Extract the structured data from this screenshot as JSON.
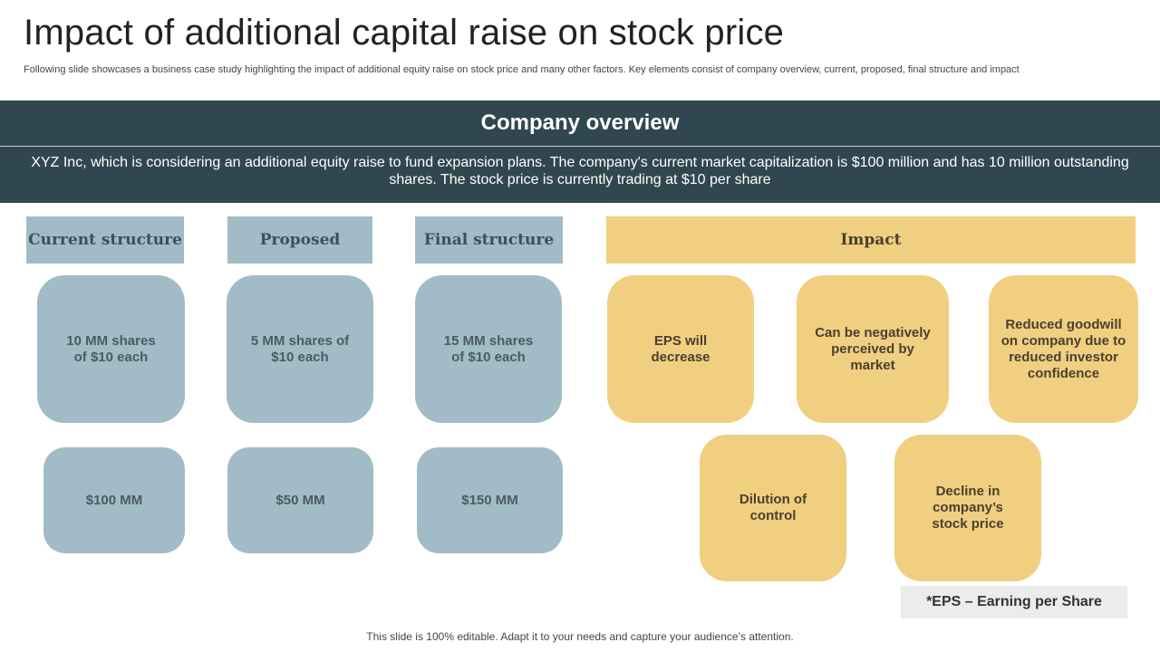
{
  "slide": {
    "title": "Impact of additional capital raise on stock price",
    "subtitle": "Following slide showcases a business case study highlighting the impact of additional equity raise on stock price and many other factors. Key elements consist of company overview, current, proposed, final structure and impact"
  },
  "overview": {
    "heading": "Company overview",
    "text": "XYZ Inc, which is considering an additional equity raise to fund expansion plans. The company's current market capitalization is $100 million and has 10 million outstanding shares. The stock price is currently trading at $10 per share"
  },
  "columns": [
    {
      "header": "Current structure",
      "shares": "10 MM shares of $10 each",
      "value": "$100 MM"
    },
    {
      "header": "Proposed",
      "shares": "5 MM shares of $10 each",
      "value": "$50 MM"
    },
    {
      "header": "Final structure",
      "shares": "15 MM shares of $10 each",
      "value": "$150 MM"
    }
  ],
  "impact": {
    "header": "Impact",
    "items": [
      "EPS will decrease",
      "Can be negatively perceived by market",
      "Reduced goodwill on company due to reduced investor confidence",
      "Dilution of control",
      "Decline in company’s stock price"
    ]
  },
  "footnote": "*EPS – Earning per Share",
  "footer": "This slide is 100% editable. Adapt it to your needs and capture your audience’s attention.",
  "colors": {
    "dark_band": "#30474f",
    "blue": "#a1bcc6",
    "gold": "#f0cf80"
  }
}
